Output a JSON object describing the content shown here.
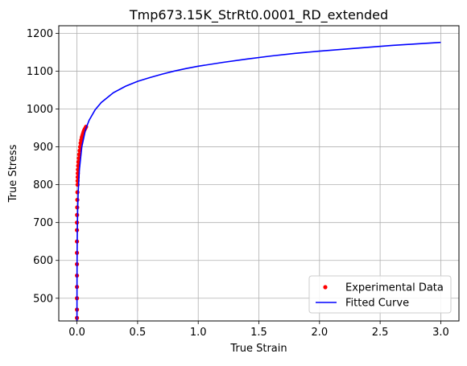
{
  "chart_data": {
    "type": "scatter+line",
    "title": "Tmp673.15K_StrRt0.0001_RD_extended",
    "xlabel": "True Strain",
    "ylabel": "True Stress",
    "xlim": [
      -0.15,
      3.15
    ],
    "ylim": [
      440,
      1220
    ],
    "xticks": [
      0.0,
      0.5,
      1.0,
      1.5,
      2.0,
      2.5,
      3.0
    ],
    "xtick_labels": [
      "0.0",
      "0.5",
      "1.0",
      "1.5",
      "2.0",
      "2.5",
      "3.0"
    ],
    "yticks": [
      500,
      600,
      700,
      800,
      900,
      1000,
      1100,
      1200
    ],
    "ytick_labels": [
      "500",
      "600",
      "700",
      "800",
      "900",
      "1000",
      "1100",
      "1200"
    ],
    "grid": true,
    "legend_position": "lower-right",
    "series": [
      {
        "name": "Experimental Data",
        "kind": "scatter",
        "color": "#ff0000",
        "x": [
          0.0,
          0.0,
          0.0,
          0.0,
          0.0,
          0.0,
          0.0,
          0.0,
          0.0,
          0.0,
          0.001,
          0.002,
          0.003,
          0.004,
          0.005,
          0.005,
          0.006,
          0.007,
          0.008,
          0.01,
          0.012,
          0.015,
          0.018,
          0.022,
          0.026,
          0.03,
          0.035,
          0.04,
          0.045,
          0.05,
          0.055,
          0.06,
          0.065,
          0.07,
          0.075
        ],
        "y": [
          448,
          470,
          500,
          530,
          560,
          590,
          620,
          650,
          680,
          700,
          720,
          740,
          760,
          780,
          800,
          810,
          820,
          830,
          840,
          850,
          860,
          870,
          880,
          890,
          900,
          910,
          918,
          925,
          930,
          935,
          940,
          944,
          947,
          950,
          953
        ]
      },
      {
        "name": "Fitted Curve",
        "kind": "line",
        "color": "#0000ff",
        "x": [
          0.0,
          0.0001,
          0.0003,
          0.0007,
          0.0015,
          0.003,
          0.006,
          0.01,
          0.02,
          0.04,
          0.07,
          0.1,
          0.15,
          0.2,
          0.3,
          0.4,
          0.5,
          0.6,
          0.7,
          0.8,
          0.9,
          1.0,
          1.2,
          1.4,
          1.6,
          1.8,
          2.0,
          2.2,
          2.4,
          2.6,
          2.8,
          3.0
        ],
        "y": [
          440,
          497,
          540,
          586,
          632,
          680,
          735,
          780,
          840,
          900,
          945,
          970,
          998,
          1017,
          1043,
          1060,
          1073,
          1083,
          1092,
          1100,
          1107,
          1113,
          1123,
          1132,
          1140,
          1147,
          1153,
          1158,
          1163,
          1168,
          1172,
          1176
        ]
      }
    ]
  }
}
